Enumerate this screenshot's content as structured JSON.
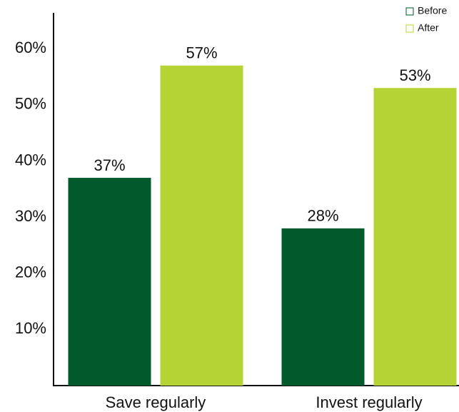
{
  "chart_data": {
    "type": "bar",
    "categories": [
      "Save regularly",
      "Invest regularly"
    ],
    "series": [
      {
        "name": "Before",
        "color": "#005a2b",
        "values": [
          37,
          28
        ],
        "value_labels": [
          "37%",
          "28%"
        ]
      },
      {
        "name": "After",
        "color": "#b5d334",
        "values": [
          57,
          53
        ],
        "value_labels": [
          "57%",
          "53%"
        ]
      }
    ],
    "ylim": [
      0,
      66
    ],
    "yticks": [
      {
        "value": 10,
        "label": "10%"
      },
      {
        "value": 20,
        "label": "20%"
      },
      {
        "value": 30,
        "label": "30%"
      },
      {
        "value": 40,
        "label": "40%"
      },
      {
        "value": 50,
        "label": "50%"
      },
      {
        "value": 60,
        "label": "60%"
      }
    ],
    "legend": "top-right"
  }
}
